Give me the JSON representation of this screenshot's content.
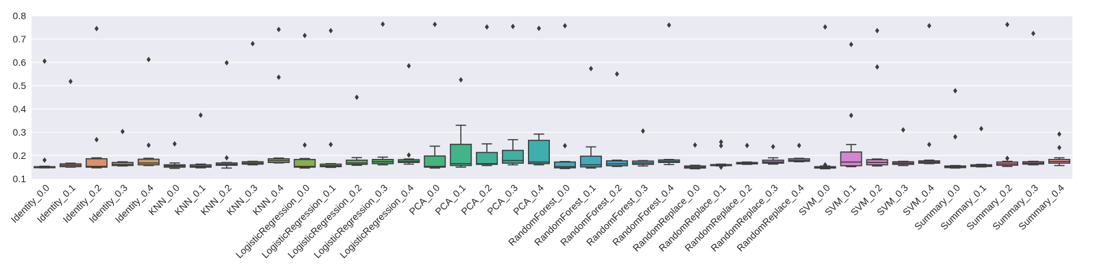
{
  "chart_data": {
    "type": "box",
    "title": "",
    "xlabel": "",
    "ylabel": "",
    "ylim": [
      0.1,
      0.8
    ],
    "yticks": [
      0.1,
      0.2,
      0.3,
      0.4,
      0.5,
      0.6,
      0.7,
      0.8
    ],
    "grid": true,
    "categories": [
      "Identity_0.0",
      "Identity_0.1",
      "Identity_0.2",
      "Identity_0.3",
      "Identity_0.4",
      "KNN_0.0",
      "KNN_0.1",
      "KNN_0.2",
      "KNN_0.3",
      "KNN_0.4",
      "LogisticRegression_0.0",
      "LogisticRegression_0.1",
      "LogisticRegression_0.2",
      "LogisticRegression_0.3",
      "LogisticRegression_0.4",
      "PCA_0.0",
      "PCA_0.1",
      "PCA_0.2",
      "PCA_0.3",
      "PCA_0.4",
      "RandomForest_0.0",
      "RandomForest_0.1",
      "RandomForest_0.2",
      "RandomForest_0.3",
      "RandomForest_0.4",
      "RandomReplace_0.0",
      "RandomReplace_0.1",
      "RandomReplace_0.2",
      "RandomReplace_0.3",
      "RandomReplace_0.4",
      "SVM_0.0",
      "SVM_0.1",
      "SVM_0.2",
      "SVM_0.3",
      "SVM_0.4",
      "Summary_0.0",
      "Summary_0.1",
      "Summary_0.2",
      "Summary_0.3",
      "Summary_0.4"
    ],
    "boxes": [
      {
        "whislo": 0.147,
        "q1": 0.148,
        "med": 0.15,
        "q3": 0.152,
        "whishi": 0.154,
        "fliers": [
          0.605,
          0.18
        ]
      },
      {
        "whislo": 0.15,
        "q1": 0.152,
        "med": 0.158,
        "q3": 0.164,
        "whishi": 0.167,
        "fliers": [
          0.518
        ]
      },
      {
        "whislo": 0.147,
        "q1": 0.15,
        "med": 0.153,
        "q3": 0.186,
        "whishi": 0.19,
        "fliers": [
          0.745,
          0.268
        ]
      },
      {
        "whislo": 0.155,
        "q1": 0.157,
        "med": 0.162,
        "q3": 0.17,
        "whishi": 0.173,
        "fliers": [
          0.303
        ]
      },
      {
        "whislo": 0.157,
        "q1": 0.16,
        "med": 0.168,
        "q3": 0.184,
        "whishi": 0.188,
        "fliers": [
          0.612,
          0.244
        ]
      },
      {
        "whislo": 0.145,
        "q1": 0.15,
        "med": 0.155,
        "q3": 0.16,
        "whishi": 0.168,
        "fliers": [
          0.25
        ]
      },
      {
        "whislo": 0.147,
        "q1": 0.15,
        "med": 0.154,
        "q3": 0.16,
        "whishi": 0.163,
        "fliers": [
          0.373
        ]
      },
      {
        "whislo": 0.146,
        "q1": 0.158,
        "med": 0.162,
        "q3": 0.168,
        "whishi": 0.17,
        "fliers": [
          0.598,
          0.19
        ]
      },
      {
        "whislo": 0.16,
        "q1": 0.163,
        "med": 0.167,
        "q3": 0.173,
        "whishi": 0.175,
        "fliers": [
          0.68
        ]
      },
      {
        "whislo": 0.168,
        "q1": 0.17,
        "med": 0.178,
        "q3": 0.186,
        "whishi": 0.189,
        "fliers": [
          0.741,
          0.536
        ]
      },
      {
        "whislo": 0.146,
        "q1": 0.15,
        "med": 0.153,
        "q3": 0.183,
        "whishi": 0.187,
        "fliers": [
          0.715,
          0.245
        ]
      },
      {
        "whislo": 0.149,
        "q1": 0.152,
        "med": 0.156,
        "q3": 0.163,
        "whishi": 0.165,
        "fliers": [
          0.736,
          0.247
        ]
      },
      {
        "whislo": 0.158,
        "q1": 0.162,
        "med": 0.168,
        "q3": 0.18,
        "whishi": 0.191,
        "fliers": [
          0.45
        ]
      },
      {
        "whislo": 0.16,
        "q1": 0.165,
        "med": 0.173,
        "q3": 0.183,
        "whishi": 0.193,
        "fliers": [
          0.764
        ]
      },
      {
        "whislo": 0.163,
        "q1": 0.17,
        "med": 0.175,
        "q3": 0.182,
        "whishi": 0.185,
        "fliers": [
          0.585,
          0.202
        ]
      },
      {
        "whislo": 0.146,
        "q1": 0.15,
        "med": 0.153,
        "q3": 0.198,
        "whishi": 0.24,
        "fliers": [
          0.763
        ]
      },
      {
        "whislo": 0.15,
        "q1": 0.157,
        "med": 0.165,
        "q3": 0.248,
        "whishi": 0.33,
        "fliers": [
          0.525
        ]
      },
      {
        "whislo": 0.157,
        "q1": 0.162,
        "med": 0.165,
        "q3": 0.213,
        "whishi": 0.25,
        "fliers": [
          0.752
        ]
      },
      {
        "whislo": 0.16,
        "q1": 0.167,
        "med": 0.178,
        "q3": 0.222,
        "whishi": 0.268,
        "fliers": [
          0.754
        ]
      },
      {
        "whislo": 0.16,
        "q1": 0.165,
        "med": 0.172,
        "q3": 0.265,
        "whishi": 0.292,
        "fliers": [
          0.746
        ]
      },
      {
        "whislo": 0.144,
        "q1": 0.147,
        "med": 0.152,
        "q3": 0.172,
        "whishi": 0.174,
        "fliers": [
          0.757,
          0.242
        ]
      },
      {
        "whislo": 0.146,
        "q1": 0.151,
        "med": 0.16,
        "q3": 0.197,
        "whishi": 0.237,
        "fliers": [
          0.573
        ]
      },
      {
        "whislo": 0.153,
        "q1": 0.156,
        "med": 0.164,
        "q3": 0.177,
        "whishi": 0.18,
        "fliers": [
          0.55
        ]
      },
      {
        "whislo": 0.155,
        "q1": 0.162,
        "med": 0.168,
        "q3": 0.176,
        "whishi": 0.178,
        "fliers": [
          0.305
        ]
      },
      {
        "whislo": 0.161,
        "q1": 0.17,
        "med": 0.175,
        "q3": 0.181,
        "whishi": 0.183,
        "fliers": [
          0.76
        ]
      },
      {
        "whislo": 0.143,
        "q1": 0.146,
        "med": 0.15,
        "q3": 0.155,
        "whishi": 0.158,
        "fliers": [
          0.245
        ]
      },
      {
        "whislo": 0.155,
        "q1": 0.157,
        "med": 0.159,
        "q3": 0.161,
        "whishi": 0.163,
        "fliers": [
          0.258,
          0.242,
          0.15
        ]
      },
      {
        "whislo": 0.162,
        "q1": 0.164,
        "med": 0.167,
        "q3": 0.17,
        "whishi": 0.172,
        "fliers": [
          0.243
        ]
      },
      {
        "whislo": 0.163,
        "q1": 0.167,
        "med": 0.172,
        "q3": 0.18,
        "whishi": 0.19,
        "fliers": [
          0.238
        ]
      },
      {
        "whislo": 0.173,
        "q1": 0.175,
        "med": 0.179,
        "q3": 0.186,
        "whishi": 0.188,
        "fliers": [
          0.243
        ]
      },
      {
        "whislo": 0.143,
        "q1": 0.146,
        "med": 0.149,
        "q3": 0.152,
        "whishi": 0.155,
        "fliers": [
          0.752,
          0.16
        ]
      },
      {
        "whislo": 0.152,
        "q1": 0.156,
        "med": 0.172,
        "q3": 0.215,
        "whishi": 0.247,
        "fliers": [
          0.677,
          0.372
        ]
      },
      {
        "whislo": 0.155,
        "q1": 0.16,
        "med": 0.17,
        "q3": 0.182,
        "whishi": 0.185,
        "fliers": [
          0.736,
          0.58
        ]
      },
      {
        "whislo": 0.157,
        "q1": 0.162,
        "med": 0.167,
        "q3": 0.173,
        "whishi": 0.175,
        "fliers": [
          0.31
        ]
      },
      {
        "whislo": 0.165,
        "q1": 0.167,
        "med": 0.172,
        "q3": 0.177,
        "whishi": 0.18,
        "fliers": [
          0.757,
          0.247
        ]
      },
      {
        "whislo": 0.146,
        "q1": 0.148,
        "med": 0.151,
        "q3": 0.155,
        "whishi": 0.157,
        "fliers": [
          0.478,
          0.28
        ]
      },
      {
        "whislo": 0.151,
        "q1": 0.153,
        "med": 0.156,
        "q3": 0.16,
        "whishi": 0.162,
        "fliers": [
          0.315
        ]
      },
      {
        "whislo": 0.153,
        "q1": 0.158,
        "med": 0.164,
        "q3": 0.172,
        "whishi": 0.175,
        "fliers": [
          0.762,
          0.188
        ]
      },
      {
        "whislo": 0.16,
        "q1": 0.163,
        "med": 0.167,
        "q3": 0.173,
        "whishi": 0.175,
        "fliers": [
          0.724
        ]
      },
      {
        "whislo": 0.157,
        "q1": 0.167,
        "med": 0.174,
        "q3": 0.183,
        "whishi": 0.19,
        "fliers": [
          0.292,
          0.234
        ]
      }
    ],
    "colors": [
      "#ea96a3",
      "#e2958f",
      "#de9169",
      "#d39a66",
      "#cb9e61",
      "#c2a159",
      "#b4a64d",
      "#a9a947",
      "#9eac4e",
      "#92b04f",
      "#84b04e",
      "#71b24b",
      "#5db551",
      "#4fb85f",
      "#46b66e",
      "#45b57e",
      "#42b38b",
      "#41b196",
      "#3fb0a1",
      "#3eafac",
      "#40adb6",
      "#42aabd",
      "#47a8c4",
      "#56a2c9",
      "#679ecd",
      "#789bd2",
      "#8c96d4",
      "#9f92d5",
      "#ae8dd7",
      "#bb88d6",
      "#c78ad3",
      "#d287cf",
      "#d885c6",
      "#e086bd",
      "#e68ab5",
      "#e88ba8",
      "#ea8ea2",
      "#ea909c",
      "#e89396",
      "#e89594"
    ]
  }
}
